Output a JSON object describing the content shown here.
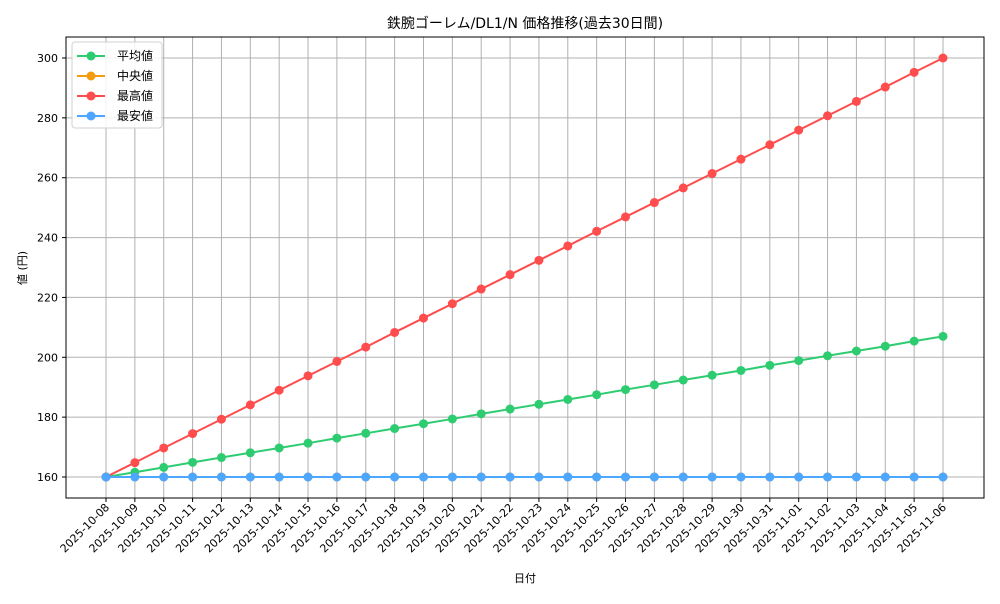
{
  "chart_data": {
    "type": "line",
    "title": "鉄腕ゴーレム/DL1/N 価格推移(過去30日間)",
    "xlabel": "日付",
    "ylabel": "値 (円)",
    "ylim": [
      153,
      307
    ],
    "yticks": [
      160,
      180,
      200,
      220,
      240,
      260,
      280,
      300
    ],
    "grid": true,
    "legend_position": "upper left",
    "categories": [
      "2025-10-08",
      "2025-10-09",
      "2025-10-10",
      "2025-10-11",
      "2025-10-12",
      "2025-10-13",
      "2025-10-14",
      "2025-10-15",
      "2025-10-16",
      "2025-10-17",
      "2025-10-18",
      "2025-10-19",
      "2025-10-20",
      "2025-10-21",
      "2025-10-22",
      "2025-10-23",
      "2025-10-24",
      "2025-10-25",
      "2025-10-26",
      "2025-10-27",
      "2025-10-28",
      "2025-10-29",
      "2025-10-30",
      "2025-10-31",
      "2025-11-01",
      "2025-11-02",
      "2025-11-03",
      "2025-11-04",
      "2025-11-05",
      "2025-11-06"
    ],
    "series": [
      {
        "name": "平均値",
        "color": "#2ecc71",
        "values": [
          160,
          161.6,
          163.2,
          164.9,
          166.5,
          168.1,
          169.7,
          171.3,
          173.0,
          174.6,
          176.2,
          177.8,
          179.4,
          181.1,
          182.7,
          184.3,
          185.9,
          187.5,
          189.2,
          190.8,
          192.4,
          194.0,
          195.6,
          197.3,
          198.9,
          200.5,
          202.1,
          203.7,
          205.4,
          207.0
        ]
      },
      {
        "name": "中央値",
        "color": "#f39c12",
        "values": [
          160,
          160,
          160,
          160,
          160,
          160,
          160,
          160,
          160,
          160,
          160,
          160,
          160,
          160,
          160,
          160,
          160,
          160,
          160,
          160,
          160,
          160,
          160,
          160,
          160,
          160,
          160,
          160,
          160,
          160
        ]
      },
      {
        "name": "最高値",
        "color": "#ff4d4d",
        "values": [
          160,
          164.8,
          169.7,
          174.5,
          179.3,
          184.1,
          189.0,
          193.8,
          198.6,
          203.4,
          208.3,
          213.1,
          217.9,
          222.8,
          227.6,
          232.4,
          237.2,
          242.1,
          246.9,
          251.7,
          256.6,
          261.4,
          266.2,
          271.0,
          275.9,
          280.7,
          285.5,
          290.3,
          295.2,
          300.0
        ]
      },
      {
        "name": "最安値",
        "color": "#4da6ff",
        "values": [
          160,
          160,
          160,
          160,
          160,
          160,
          160,
          160,
          160,
          160,
          160,
          160,
          160,
          160,
          160,
          160,
          160,
          160,
          160,
          160,
          160,
          160,
          160,
          160,
          160,
          160,
          160,
          160,
          160,
          160
        ]
      }
    ]
  }
}
